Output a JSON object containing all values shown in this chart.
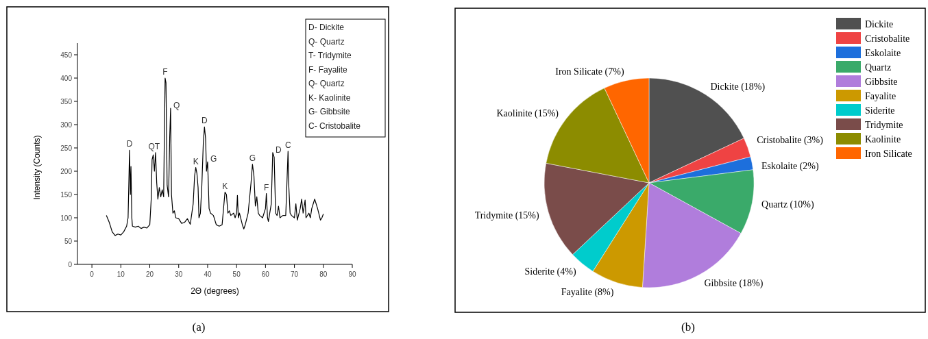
{
  "chart_data": [
    {
      "type": "line",
      "xlabel": "2Θ (degrees)",
      "ylabel": "Intensity (Counts)",
      "xlim": [
        -5,
        90
      ],
      "ylim": [
        0,
        475
      ],
      "xticks": [
        0,
        10,
        20,
        30,
        40,
        50,
        60,
        70,
        80,
        90
      ],
      "yticks": [
        0,
        50,
        100,
        150,
        200,
        250,
        300,
        350,
        400,
        450
      ],
      "grid": false,
      "legend": false,
      "marker": "none",
      "line_style": "solid",
      "series": [
        {
          "color": "#000000",
          "x": [
            5,
            6,
            7,
            8,
            9,
            10,
            11,
            12,
            12.5,
            12.8,
            13,
            13.3,
            13.5,
            13.8,
            14,
            15,
            16,
            17,
            18,
            19,
            20,
            20.5,
            20.8,
            21.2,
            21.6,
            22,
            22.4,
            22.8,
            23.3,
            23.8,
            24.3,
            24.8,
            25,
            25.3,
            25.6,
            26,
            26.5,
            26.9,
            27.2,
            27.5,
            28,
            28.5,
            29,
            30,
            31,
            32,
            33,
            34,
            35,
            35.5,
            35.9,
            36.3,
            36.7,
            37,
            37.5,
            38,
            38.5,
            38.9,
            39.3,
            39.6,
            40,
            40.5,
            41,
            42,
            43,
            44,
            45,
            45.5,
            46,
            46.5,
            47,
            47.5,
            48,
            49,
            49.5,
            50,
            50.3,
            50.6,
            51,
            52,
            52.5,
            53,
            54,
            55,
            55.5,
            56,
            56.5,
            57,
            57.5,
            58,
            59,
            60,
            60.3,
            60.7,
            61,
            62,
            62.5,
            63,
            63.5,
            64,
            64.5,
            65,
            66,
            67,
            67.8,
            68,
            68.5,
            69,
            70,
            70.5,
            71,
            72,
            72.5,
            73,
            73.7,
            74,
            75,
            75.5,
            76,
            77,
            78,
            79,
            79.5,
            80
          ],
          "values": [
            105,
            90,
            70,
            62,
            65,
            63,
            70,
            82,
            100,
            185,
            245,
            150,
            210,
            100,
            82,
            80,
            82,
            77,
            80,
            78,
            85,
            140,
            225,
            235,
            200,
            240,
            175,
            140,
            165,
            145,
            160,
            145,
            255,
            400,
            390,
            170,
            145,
            275,
            335,
            150,
            110,
            115,
            100,
            98,
            88,
            90,
            98,
            86,
            130,
            190,
            208,
            195,
            165,
            100,
            110,
            170,
            260,
            295,
            270,
            200,
            220,
            120,
            110,
            105,
            85,
            82,
            85,
            120,
            155,
            150,
            110,
            115,
            105,
            110,
            100,
            110,
            148,
            100,
            110,
            85,
            76,
            85,
            110,
            175,
            215,
            190,
            125,
            145,
            110,
            105,
            100,
            120,
            152,
            100,
            92,
            130,
            240,
            230,
            110,
            105,
            125,
            100,
            105,
            105,
            243,
            175,
            110,
            105,
            100,
            130,
            95,
            120,
            140,
            110,
            138,
            100,
            110,
            100,
            120,
            140,
            120,
            95,
            100,
            108
          ]
        }
      ],
      "annotations": [
        {
          "text": "D",
          "x": 13,
          "y": 245
        },
        {
          "text": "QT",
          "x": 21.5,
          "y": 240
        },
        {
          "text": "F",
          "x": 25.3,
          "y": 400
        },
        {
          "text": "Q",
          "x": 27.2,
          "y": 335
        },
        {
          "text": "K",
          "x": 35.9,
          "y": 208
        },
        {
          "text": "D",
          "x": 38.9,
          "y": 295
        },
        {
          "text": "G",
          "x": 40,
          "y": 220
        },
        {
          "text": "K",
          "x": 46,
          "y": 155
        },
        {
          "text": "G",
          "x": 55.5,
          "y": 215
        },
        {
          "text": "F",
          "x": 60.3,
          "y": 152
        },
        {
          "text": "D",
          "x": 62.5,
          "y": 240
        },
        {
          "text": "C",
          "x": 67.8,
          "y": 243
        },
        "D- Dickite",
        "Q- Quartz",
        "T- Tridymite",
        "F- Fayalite",
        "Q- Quartz",
        "K- Kaolinite",
        "G- Gibbsite",
        "C- Cristobalite",
        "(a)"
      ]
    },
    {
      "type": "pie",
      "categories": [
        "Dickite",
        "Cristobalite",
        "Eskolaite",
        "Quartz",
        "Gibbsite",
        "Fayalite",
        "Siderite",
        "Tridymite",
        "Kaolinite",
        "Iron Silicate"
      ],
      "values": [
        18,
        3,
        2,
        10,
        18,
        8,
        4,
        15,
        15,
        7
      ],
      "colors": [
        "#505050",
        "#ef4343",
        "#1d6fdc",
        "#3aaa6a",
        "#b07ddc",
        "#cc9900",
        "#00cccc",
        "#7a4c4a",
        "#8c8c00",
        "#ff6600"
      ],
      "value_labels": [
        "Dickite (18%)",
        "Cristobalite (3%)",
        "Eskolaite (2%)",
        "Quartz (10%)",
        "Gibbsite (18%)",
        "Fayalite (8%)",
        "Siderite (4%)",
        "Tridymite (15%)",
        "Kaolinite (15%)",
        "Iron Silicate (7%)"
      ],
      "legend": "top right",
      "annotations": [
        "(b)"
      ]
    }
  ]
}
